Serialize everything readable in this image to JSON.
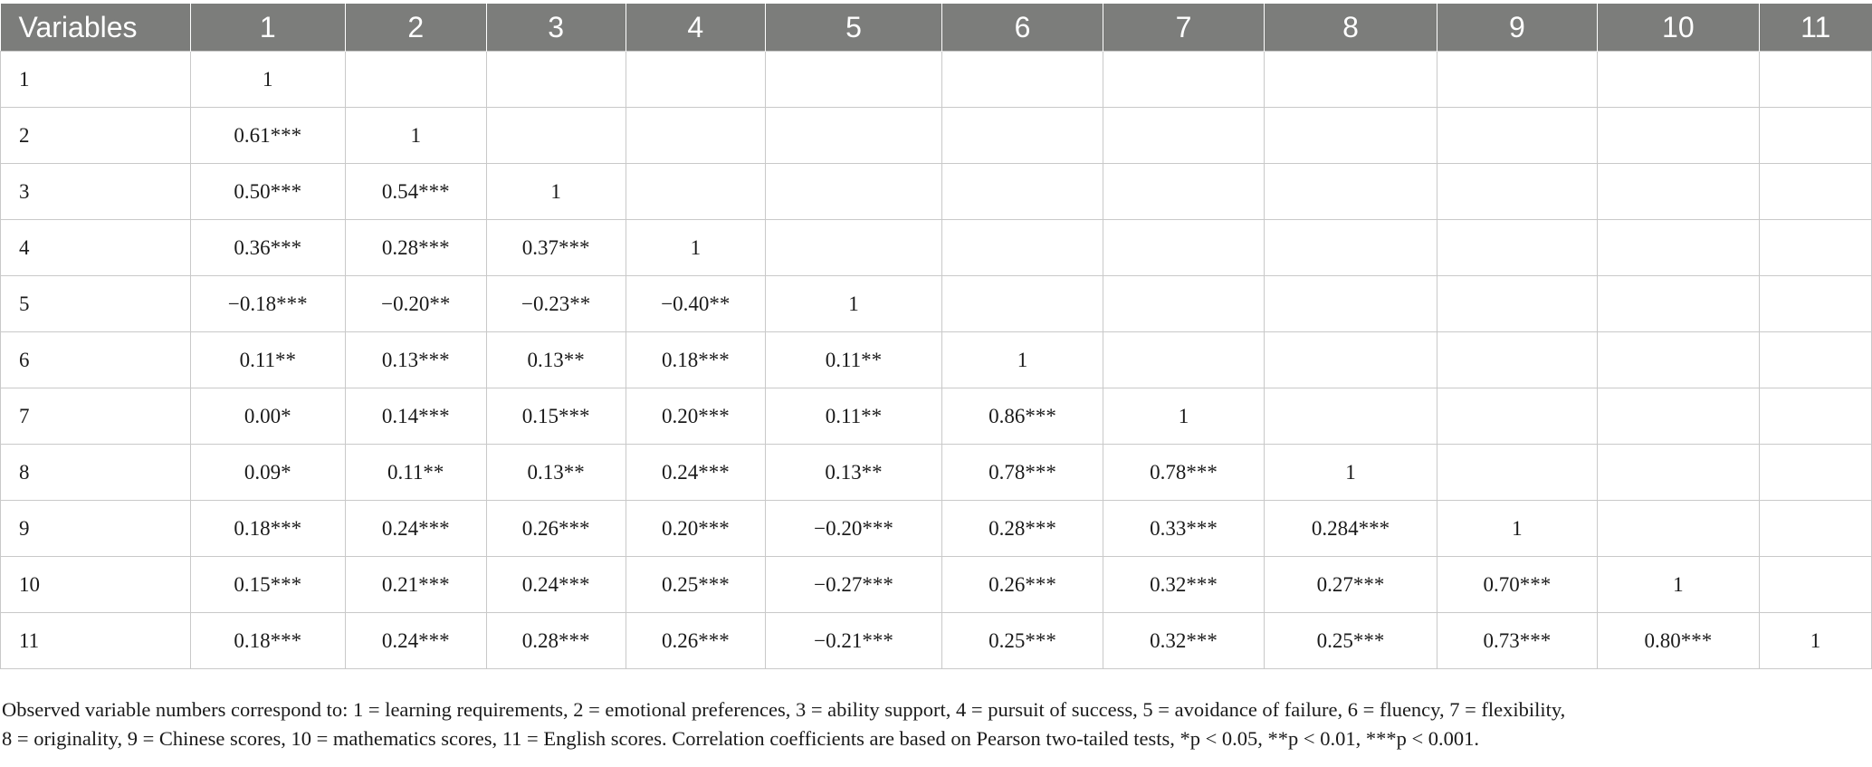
{
  "table": {
    "headers": [
      "Variables",
      "1",
      "2",
      "3",
      "4",
      "5",
      "6",
      "7",
      "8",
      "9",
      "10",
      "11"
    ],
    "rows": [
      [
        "1",
        "1",
        "",
        "",
        "",
        "",
        "",
        "",
        "",
        "",
        "",
        ""
      ],
      [
        "2",
        "0.61***",
        "1",
        "",
        "",
        "",
        "",
        "",
        "",
        "",
        "",
        ""
      ],
      [
        "3",
        "0.50***",
        "0.54***",
        "1",
        "",
        "",
        "",
        "",
        "",
        "",
        "",
        ""
      ],
      [
        "4",
        "0.36***",
        "0.28***",
        "0.37***",
        "1",
        "",
        "",
        "",
        "",
        "",
        "",
        ""
      ],
      [
        "5",
        "−0.18***",
        "−0.20**",
        "−0.23**",
        "−0.40**",
        "1",
        "",
        "",
        "",
        "",
        "",
        ""
      ],
      [
        "6",
        "0.11**",
        "0.13***",
        "0.13**",
        "0.18***",
        "0.11**",
        "1",
        "",
        "",
        "",
        "",
        ""
      ],
      [
        "7",
        "0.00*",
        "0.14***",
        "0.15***",
        "0.20***",
        "0.11**",
        "0.86***",
        "1",
        "",
        "",
        "",
        ""
      ],
      [
        "8",
        "0.09*",
        "0.11**",
        "0.13**",
        "0.24***",
        "0.13**",
        "0.78***",
        "0.78***",
        "1",
        "",
        "",
        ""
      ],
      [
        "9",
        "0.18***",
        "0.24***",
        "0.26***",
        "0.20***",
        "−0.20***",
        "0.28***",
        "0.33***",
        "0.284***",
        "1",
        "",
        ""
      ],
      [
        "10",
        "0.15***",
        "0.21***",
        "0.24***",
        "0.25***",
        "−0.27***",
        "0.26***",
        "0.32***",
        "0.27***",
        "0.70***",
        "1",
        ""
      ],
      [
        "11",
        "0.18***",
        "0.24***",
        "0.28***",
        "0.26***",
        "−0.21***",
        "0.25***",
        "0.32***",
        "0.25***",
        "0.73***",
        "0.80***",
        "1"
      ]
    ]
  },
  "footnote": {
    "line1": "Observed variable numbers correspond to: 1 = learning requirements, 2 = emotional preferences, 3 = ability support, 4 = pursuit of success, 5 = avoidance of failure, 6 = fluency, 7 = flexibility,",
    "line2": "8 = originality, 9 = Chinese scores, 10 = mathematics scores, 11 = English scores. Correlation coefficients are based on Pearson two-tailed tests, *p < 0.05, **p < 0.01, ***p < 0.001."
  }
}
